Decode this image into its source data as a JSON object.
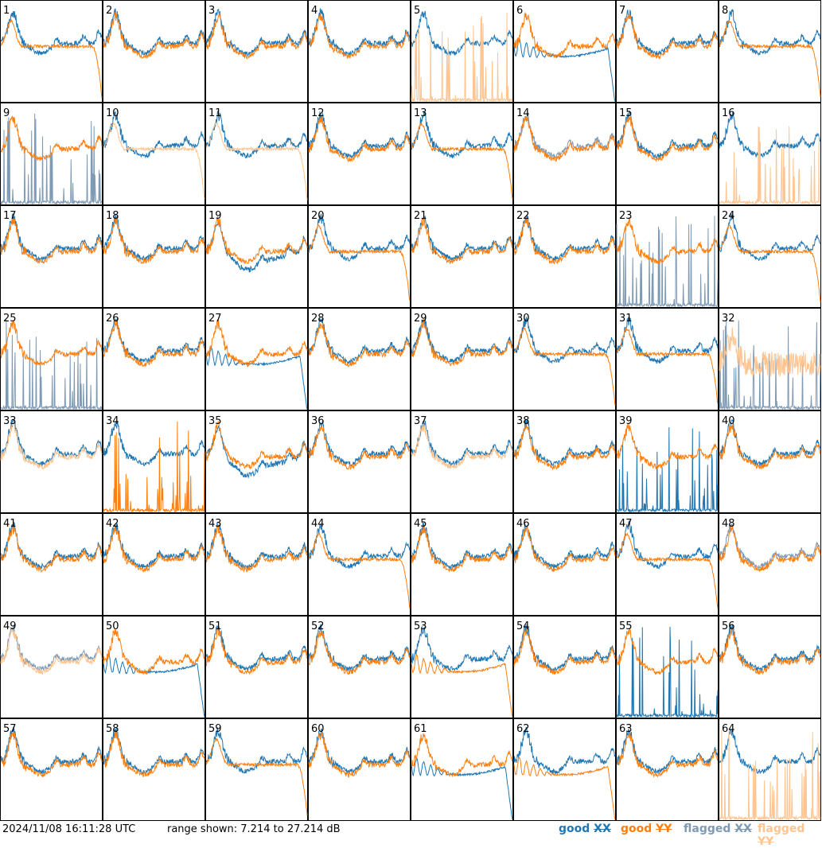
{
  "timestamp": "2024/11/08 16:11:28 UTC",
  "range_text": "range shown: 7.214 to 27.214 dB",
  "colors": {
    "good_xx": "#1f77b4",
    "good_yy": "#ff7f0e",
    "flagged_xx": "#7e9ab5",
    "flagged_yy": "#ffc48f"
  },
  "legend": [
    {
      "word": "good",
      "pol": "XX",
      "color": "#1f77b4"
    },
    {
      "word": "good",
      "pol": "YY",
      "color": "#ff7f0e"
    },
    {
      "word": "flagged",
      "pol": "XX",
      "color": "#7e9ab5"
    },
    {
      "word": "flagged",
      "pol": "YY",
      "color": "#ffc48f"
    }
  ],
  "chart_data": {
    "type": "line",
    "layout": "small-multiples 8x8",
    "ylim": [
      7.214,
      27.214
    ],
    "grid": false,
    "panels": [
      {
        "id": 1,
        "xx": "good",
        "yy": "good",
        "yy_shape": "edge-drop"
      },
      {
        "id": 2,
        "xx": "good",
        "yy": "good"
      },
      {
        "id": 3,
        "xx": "good",
        "yy": "good"
      },
      {
        "id": 4,
        "xx": "good",
        "yy": "good"
      },
      {
        "id": 5,
        "xx": "good",
        "yy": "flagged",
        "yy_shape": "spikes"
      },
      {
        "id": 6,
        "xx": "good",
        "yy": "good",
        "xx_shape": "broad-low"
      },
      {
        "id": 7,
        "xx": "good",
        "yy": "good"
      },
      {
        "id": 8,
        "xx": "good",
        "yy": "good",
        "yy_shape": "edge-drop"
      },
      {
        "id": 9,
        "xx": "flagged",
        "yy": "good",
        "xx_shape": "spikes"
      },
      {
        "id": 10,
        "xx": "good",
        "yy": "flagged",
        "yy_shape": "edge-drop"
      },
      {
        "id": 11,
        "xx": "good",
        "yy": "flagged",
        "yy_shape": "edge-drop"
      },
      {
        "id": 12,
        "xx": "good",
        "yy": "good"
      },
      {
        "id": 13,
        "xx": "good",
        "yy": "good",
        "yy_shape": "edge-drop"
      },
      {
        "id": 14,
        "xx": "flagged",
        "yy": "good"
      },
      {
        "id": 15,
        "xx": "good",
        "yy": "good"
      },
      {
        "id": 16,
        "xx": "good",
        "yy": "flagged",
        "yy_shape": "spikes"
      },
      {
        "id": 17,
        "xx": "good",
        "yy": "good"
      },
      {
        "id": 18,
        "xx": "good",
        "yy": "good"
      },
      {
        "id": 19,
        "xx": "good",
        "yy": "good",
        "xx_shape": "low"
      },
      {
        "id": 20,
        "xx": "good",
        "yy": "good",
        "yy_shape": "edge-drop"
      },
      {
        "id": 21,
        "xx": "good",
        "yy": "good"
      },
      {
        "id": 22,
        "xx": "good",
        "yy": "good"
      },
      {
        "id": 23,
        "xx": "flagged",
        "yy": "good",
        "xx_shape": "spikes"
      },
      {
        "id": 24,
        "xx": "good",
        "yy": "good",
        "yy_shape": "edge-drop"
      },
      {
        "id": 25,
        "xx": "flagged",
        "yy": "good",
        "xx_shape": "spikes"
      },
      {
        "id": 26,
        "xx": "good",
        "yy": "good"
      },
      {
        "id": 27,
        "xx": "good",
        "yy": "good",
        "xx_shape": "broad-low"
      },
      {
        "id": 28,
        "xx": "good",
        "yy": "good"
      },
      {
        "id": 29,
        "xx": "good",
        "yy": "good"
      },
      {
        "id": 30,
        "xx": "good",
        "yy": "good",
        "yy_shape": "edge-drop"
      },
      {
        "id": 31,
        "xx": "good",
        "yy": "good",
        "yy_shape": "edge-drop"
      },
      {
        "id": 32,
        "xx": "flagged",
        "yy": "flagged",
        "xx_shape": "spikes",
        "yy_shape": "noisy"
      },
      {
        "id": 33,
        "xx": "good",
        "yy": "flagged"
      },
      {
        "id": 34,
        "xx": "good",
        "yy": "good",
        "yy_shape": "spikes"
      },
      {
        "id": 35,
        "xx": "good",
        "yy": "good",
        "xx_shape": "low"
      },
      {
        "id": 36,
        "xx": "good",
        "yy": "good"
      },
      {
        "id": 37,
        "xx": "good",
        "yy": "flagged"
      },
      {
        "id": 38,
        "xx": "good",
        "yy": "good"
      },
      {
        "id": 39,
        "xx": "good",
        "yy": "good",
        "xx_shape": "spikes"
      },
      {
        "id": 40,
        "xx": "good",
        "yy": "good"
      },
      {
        "id": 41,
        "xx": "good",
        "yy": "good"
      },
      {
        "id": 42,
        "xx": "good",
        "yy": "good"
      },
      {
        "id": 43,
        "xx": "good",
        "yy": "good"
      },
      {
        "id": 44,
        "xx": "good",
        "yy": "good",
        "yy_shape": "edge-drop"
      },
      {
        "id": 45,
        "xx": "good",
        "yy": "good"
      },
      {
        "id": 46,
        "xx": "good",
        "yy": "good"
      },
      {
        "id": 47,
        "xx": "good",
        "yy": "good",
        "yy_shape": "edge-drop"
      },
      {
        "id": 48,
        "xx": "flagged",
        "yy": "good"
      },
      {
        "id": 49,
        "xx": "flagged",
        "yy": "flagged"
      },
      {
        "id": 50,
        "xx": "good",
        "yy": "good",
        "xx_shape": "broad-low"
      },
      {
        "id": 51,
        "xx": "good",
        "yy": "good"
      },
      {
        "id": 52,
        "xx": "good",
        "yy": "good"
      },
      {
        "id": 53,
        "xx": "good",
        "yy": "good",
        "yy_shape": "broad-low"
      },
      {
        "id": 54,
        "xx": "good",
        "yy": "good"
      },
      {
        "id": 55,
        "xx": "good",
        "yy": "good",
        "xx_shape": "spikes"
      },
      {
        "id": 56,
        "xx": "good",
        "yy": "good"
      },
      {
        "id": 57,
        "xx": "good",
        "yy": "good"
      },
      {
        "id": 58,
        "xx": "good",
        "yy": "good"
      },
      {
        "id": 59,
        "xx": "good",
        "yy": "good",
        "yy_shape": "edge-drop"
      },
      {
        "id": 60,
        "xx": "good",
        "yy": "good"
      },
      {
        "id": 61,
        "xx": "good",
        "yy": "good",
        "xx_shape": "broad-low"
      },
      {
        "id": 62,
        "xx": "good",
        "yy": "good",
        "yy_shape": "broad-low"
      },
      {
        "id": 63,
        "xx": "good",
        "yy": "good"
      },
      {
        "id": 64,
        "xx": "good",
        "yy": "flagged",
        "yy_shape": "spikes"
      }
    ]
  }
}
